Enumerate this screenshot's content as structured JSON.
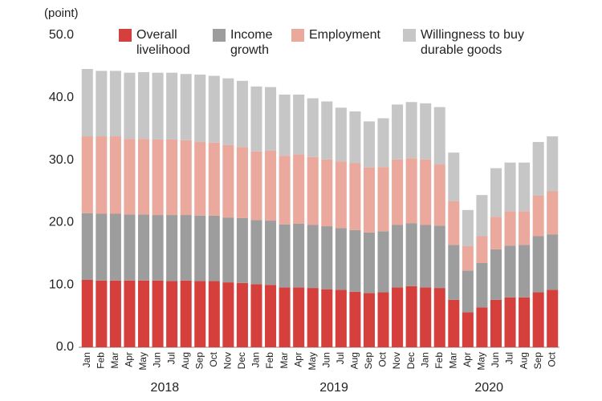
{
  "chart_data": {
    "type": "stacked_bar",
    "y_unit": "(point)",
    "categories": [
      "Jan",
      "Feb",
      "Mar",
      "Apr",
      "May",
      "Jun",
      "Jul",
      "Aug",
      "Sep",
      "Oct",
      "Nov",
      "Dec",
      "Jan",
      "Feb",
      "Mar",
      "Apr",
      "May",
      "Jun",
      "Jul",
      "Aug",
      "Sep",
      "Oct",
      "Nov",
      "Dec",
      "Jan",
      "Feb",
      "Mar",
      "Apr",
      "May",
      "Jun",
      "Jul",
      "Aug",
      "Sep",
      "Oct"
    ],
    "x_groups": [
      {
        "label": "2018",
        "count": 12
      },
      {
        "label": "2019",
        "count": 12
      },
      {
        "label": "2020",
        "count": 10
      }
    ],
    "ylim": [
      0,
      50
    ],
    "yticks": [
      {
        "value": 0,
        "label": "0.0"
      },
      {
        "value": 10,
        "label": "10.0"
      },
      {
        "value": 20,
        "label": "20.0"
      },
      {
        "value": 30,
        "label": "30.0"
      },
      {
        "value": 40,
        "label": "40.0"
      },
      {
        "value": 50,
        "label": "50.0"
      }
    ],
    "series": [
      {
        "name": "Overall livelihood",
        "color": "#d5403d",
        "values": [
          10.8,
          10.7,
          10.7,
          10.7,
          10.7,
          10.7,
          10.6,
          10.7,
          10.6,
          10.6,
          10.4,
          10.3,
          10.1,
          10.0,
          9.6,
          9.6,
          9.5,
          9.3,
          9.2,
          8.9,
          8.7,
          8.8,
          9.6,
          9.8,
          9.6,
          9.5,
          7.6,
          5.6,
          6.4,
          7.6,
          8.0,
          8.0,
          8.8,
          9.2
        ]
      },
      {
        "name": "Income growth",
        "color": "#9d9d9d",
        "values": [
          10.7,
          10.7,
          10.7,
          10.6,
          10.6,
          10.5,
          10.6,
          10.5,
          10.5,
          10.5,
          10.4,
          10.4,
          10.3,
          10.3,
          10.1,
          10.2,
          10.1,
          10.1,
          9.9,
          9.9,
          9.7,
          9.8,
          10.0,
          10.1,
          10.0,
          10.0,
          8.8,
          6.7,
          7.1,
          8.1,
          8.3,
          8.4,
          9.0,
          8.9
        ]
      },
      {
        "name": "Employment",
        "color": "#eba89c",
        "values": [
          12.3,
          12.4,
          12.4,
          12.1,
          12.1,
          12.1,
          12.1,
          12.0,
          11.8,
          11.7,
          11.6,
          11.4,
          11.0,
          11.2,
          11.0,
          11.1,
          10.9,
          10.7,
          10.7,
          10.7,
          10.4,
          10.3,
          10.5,
          10.4,
          10.5,
          9.8,
          7.0,
          3.9,
          4.3,
          5.2,
          5.5,
          5.4,
          6.5,
          6.9
        ]
      },
      {
        "name": "Willingness to buy durable goods",
        "color": "#c6c6c6",
        "values": [
          10.8,
          10.5,
          10.5,
          10.6,
          10.7,
          10.7,
          10.7,
          10.6,
          10.8,
          10.7,
          10.7,
          10.6,
          10.4,
          10.2,
          9.8,
          9.6,
          9.4,
          9.3,
          8.6,
          8.3,
          7.4,
          7.8,
          8.8,
          9.0,
          9.0,
          9.2,
          7.8,
          5.8,
          6.6,
          7.8,
          7.8,
          7.8,
          8.6,
          8.8
        ]
      }
    ]
  }
}
